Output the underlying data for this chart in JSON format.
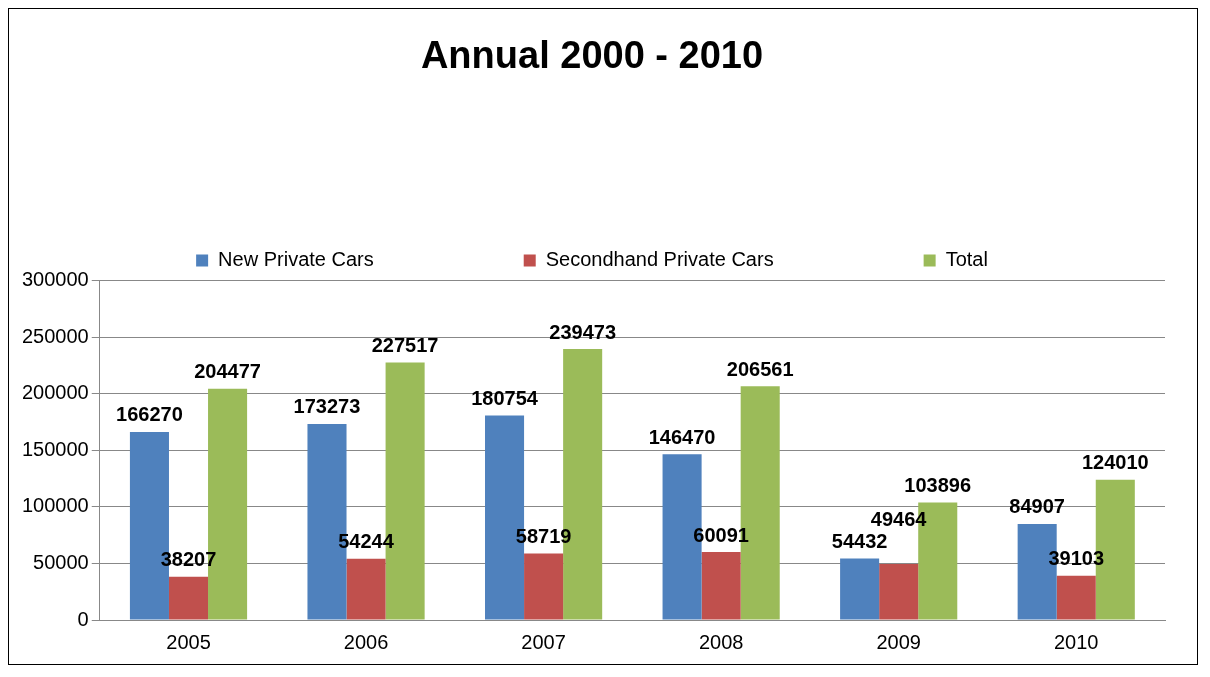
{
  "chart_data": {
    "type": "bar",
    "title": "Annual 2000 - 2010",
    "categories": [
      "2005",
      "2006",
      "2007",
      "2008",
      "2009",
      "2010"
    ],
    "series": [
      {
        "name": "New Private Cars",
        "color": "#4f81bd",
        "values": [
          166270,
          173273,
          180754,
          146470,
          54432,
          84907
        ]
      },
      {
        "name": "Secondhand Private Cars",
        "color": "#c0504d",
        "values": [
          38207,
          54244,
          58719,
          60091,
          49464,
          39103
        ]
      },
      {
        "name": "Total",
        "color": "#9bbb59",
        "values": [
          204477,
          227517,
          239473,
          206561,
          103896,
          124010
        ]
      }
    ],
    "ylim": [
      0,
      300000
    ],
    "yticks": [
      0,
      50000,
      100000,
      150000,
      200000,
      250000,
      300000
    ],
    "grid": "y",
    "legend": "top",
    "data_labels": true
  }
}
